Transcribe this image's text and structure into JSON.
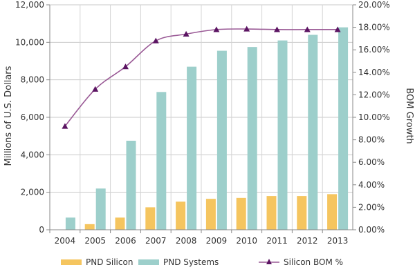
{
  "chart_data": {
    "type": "bar",
    "categories": [
      "2004",
      "2005",
      "2006",
      "2007",
      "2008",
      "2009",
      "2010",
      "2011",
      "2012",
      "2013"
    ],
    "ylabel": "Millions of U.S. Dollars",
    "y2label": "BOM Growth",
    "ylim": [
      0,
      12000
    ],
    "yticks": [
      "0",
      "2,000",
      "4,000",
      "6,000",
      "8,000",
      "10,000",
      "12,000"
    ],
    "y2lim": [
      0,
      20
    ],
    "y2ticks": [
      "0.00%",
      "2.00%",
      "4.00%",
      "6.00%",
      "8.00%",
      "10.00%",
      "12.00%",
      "14.00%",
      "16.00%",
      "18.00%",
      "20.00%"
    ],
    "grid": true,
    "legend_position": "bottom",
    "series": [
      {
        "name": "PND Silicon",
        "kind": "bar",
        "axis": "left",
        "color": "#f5c55f",
        "values": [
          0,
          300,
          650,
          1200,
          1500,
          1650,
          1700,
          1800,
          1800,
          1900
        ]
      },
      {
        "name": "PND Systems",
        "kind": "bar",
        "axis": "left",
        "color": "#9dcfcb",
        "values": [
          650,
          2200,
          4750,
          7350,
          8700,
          9550,
          9750,
          10100,
          10400,
          10800
        ]
      },
      {
        "name": "Silicon BOM %",
        "kind": "line",
        "axis": "right",
        "color": "#9a5a96",
        "marker_color": "#5b1462",
        "values": [
          9.2,
          12.5,
          14.5,
          16.8,
          17.4,
          17.8,
          17.85,
          17.8,
          17.8,
          17.8
        ]
      }
    ]
  }
}
